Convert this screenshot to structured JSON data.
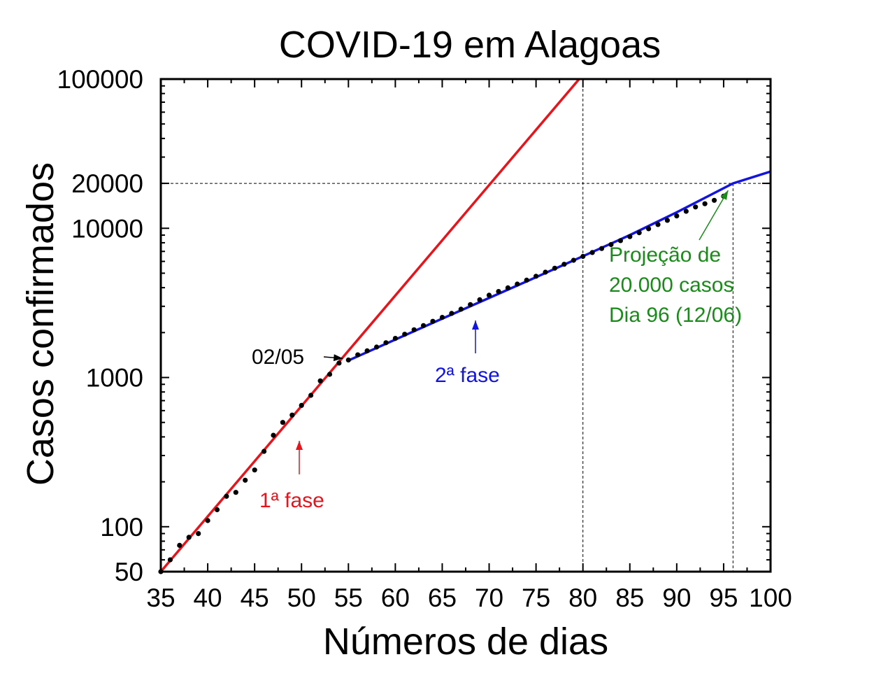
{
  "chart_data": {
    "type": "scatter",
    "title": "COVID-19 em Alagoas",
    "xlabel": "Números de dias",
    "ylabel": "Casos confirmados",
    "xlim": [
      35,
      100
    ],
    "ylim": [
      50,
      100000
    ],
    "yscale": "log",
    "x_ticks": [
      35,
      40,
      45,
      50,
      55,
      60,
      65,
      70,
      75,
      80,
      85,
      90,
      95,
      100
    ],
    "x_tick_labels": [
      "35",
      "40",
      "45",
      "50",
      "55",
      "60",
      "65",
      "70",
      "75",
      "80",
      "85",
      "90",
      "95",
      "100"
    ],
    "y_ticks": [
      50,
      100,
      1000,
      10000,
      20000,
      100000
    ],
    "y_tick_labels": [
      "50",
      "100",
      "1000",
      "10000",
      "20000",
      "100000"
    ],
    "grid": false,
    "colors": {
      "data": "#000000",
      "fase1": "#e8141c",
      "fase2": "#1414e0",
      "projection": "#1a8a1a",
      "reference": "#000000"
    },
    "series": [
      {
        "kind": "points",
        "x": [
          35,
          36,
          37,
          38,
          39,
          40,
          41,
          42,
          43,
          44,
          45,
          46,
          47,
          48,
          49,
          50,
          51,
          52,
          53,
          54,
          55,
          56,
          57,
          58,
          59,
          60,
          61,
          62,
          63,
          64,
          65,
          66,
          67,
          68,
          69,
          70,
          71,
          72,
          73,
          74,
          75,
          76,
          77,
          78,
          79,
          80,
          81,
          82,
          83,
          84,
          85,
          86,
          87,
          88,
          89,
          90,
          91,
          92,
          93,
          94,
          95
        ],
        "y": [
          50,
          60,
          75,
          85,
          90,
          110,
          130,
          160,
          170,
          205,
          240,
          320,
          410,
          500,
          560,
          650,
          760,
          950,
          1050,
          1250,
          1310,
          1420,
          1510,
          1600,
          1710,
          1830,
          1950,
          2090,
          2230,
          2380,
          2530,
          2690,
          2870,
          3080,
          3320,
          3560,
          3770,
          3990,
          4230,
          4490,
          4770,
          5080,
          5400,
          5740,
          6100,
          6480,
          6880,
          7320,
          7780,
          8270,
          8790,
          9340,
          9930,
          10600,
          11300,
          12100,
          13000,
          13900,
          14600,
          15400,
          16400
        ]
      },
      {
        "kind": "line",
        "name": "1ª fase",
        "x": [
          35,
          79.6
        ],
        "y": [
          50,
          100000
        ]
      },
      {
        "kind": "line",
        "name": "2ª fase",
        "x": [
          55,
          65,
          75,
          80,
          85,
          90,
          96,
          100
        ],
        "y": [
          1300,
          2480,
          4700,
          6500,
          9000,
          12800,
          20000,
          24000
        ]
      }
    ],
    "reference_lines": [
      {
        "orientation": "vertical",
        "x": 80,
        "y_from": 50,
        "y_to": 100000
      },
      {
        "orientation": "vertical",
        "x": 96,
        "y_from": 50,
        "y_to": 20000
      },
      {
        "orientation": "horizontal",
        "y": 20000,
        "x_from": 35,
        "x_to": 100
      }
    ],
    "annotations": [
      {
        "text": "02/05",
        "color": "black",
        "x": 55,
        "y": 1300
      },
      {
        "text": "1ª fase",
        "color": "red",
        "x": 50,
        "y": 200
      },
      {
        "text": "2ª fase",
        "color": "blue",
        "x": 68.5,
        "y": 2200
      },
      {
        "lines": [
          "Projeção de",
          "20.000 casos",
          "Dia 96 (12/06)"
        ],
        "color": "green",
        "x": 96,
        "y": 20000
      }
    ]
  }
}
